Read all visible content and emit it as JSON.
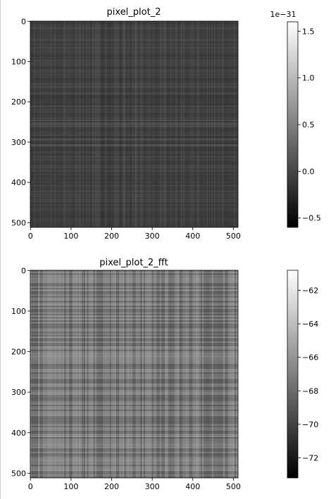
{
  "chart_data": [
    {
      "type": "heatmap",
      "title": "pixel_plot_2",
      "colormap": "gray",
      "image_shape": [
        512,
        512
      ],
      "xticks": [
        0,
        100,
        200,
        300,
        400,
        500
      ],
      "yticks": [
        0,
        100,
        200,
        300,
        400,
        500
      ],
      "colorbar": {
        "range": [
          -0.6,
          1.6
        ],
        "ticks": [
          -0.5,
          0.0,
          0.5,
          1.0,
          1.5
        ],
        "tick_labels": [
          "−0.5",
          "0.0",
          "0.5",
          "1.0",
          "1.5"
        ],
        "offset_label": "1e−31"
      },
      "pattern": "vertical and horizontal stripes; dark gray background, mean near 0.0"
    },
    {
      "type": "heatmap",
      "title": "pixel_plot_2_fft",
      "colormap": "gray",
      "image_shape": [
        512,
        512
      ],
      "xticks": [
        0,
        100,
        200,
        300,
        400,
        500
      ],
      "yticks": [
        0,
        100,
        200,
        300,
        400,
        500
      ],
      "colorbar": {
        "range": [
          -73.2,
          -60.8
        ],
        "ticks": [
          -72,
          -70,
          -68,
          -66,
          -64,
          -62
        ],
        "tick_labels": [
          "−72",
          "−70",
          "−68",
          "−66",
          "−64",
          "−62"
        ]
      },
      "pattern": "plaid grid of light vertical and horizontal bands, mid gray"
    }
  ]
}
